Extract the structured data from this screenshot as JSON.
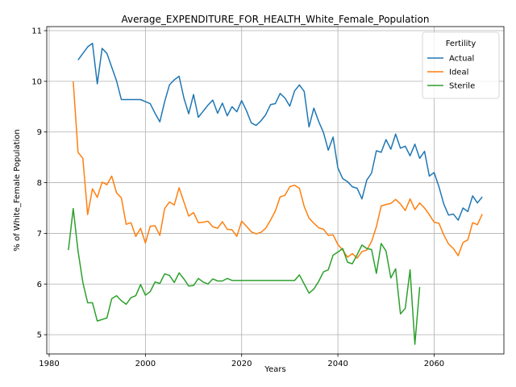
{
  "chart_data": {
    "type": "line",
    "title": "Average_EXPENDITURE_FOR_HEALTH_White_Female_Population",
    "xlabel": "Years",
    "ylabel": "% of White_Female Population",
    "xlim": [
      1979.5,
      2074.5
    ],
    "ylim": [
      4.62,
      11.08
    ],
    "xticks": [
      1980,
      2000,
      2020,
      2040,
      2060
    ],
    "yticks": [
      5,
      6,
      7,
      8,
      9,
      10,
      11
    ],
    "grid": true,
    "legend": {
      "title": "Fertility",
      "position": "top-right"
    },
    "series": [
      {
        "name": "Actual",
        "color": "#1f77b4",
        "x": [
          1986,
          1987,
          1988,
          1989,
          1990,
          1991,
          1992,
          1993,
          1994,
          1995,
          1996,
          1997,
          1998,
          1999,
          2000,
          2001,
          2002,
          2003,
          2004,
          2005,
          2006,
          2007,
          2008,
          2009,
          2010,
          2011,
          2012,
          2013,
          2014,
          2015,
          2016,
          2017,
          2018,
          2019,
          2020,
          2021,
          2022,
          2023,
          2024,
          2025,
          2026,
          2027,
          2028,
          2029,
          2030,
          2031,
          2032,
          2033,
          2034,
          2035,
          2036,
          2037,
          2038,
          2039,
          2040,
          2041,
          2042,
          2043,
          2044,
          2045,
          2046,
          2047,
          2048,
          2049,
          2050,
          2051,
          2052,
          2053,
          2054,
          2055,
          2056,
          2057,
          2058,
          2059,
          2060,
          2061,
          2062,
          2063,
          2064,
          2065,
          2066,
          2067,
          2068,
          2069,
          2070
        ],
        "y": [
          10.42,
          10.55,
          10.68,
          10.75,
          9.95,
          10.65,
          10.55,
          10.28,
          10.01,
          9.64,
          9.64,
          9.64,
          9.64,
          9.64,
          9.6,
          9.56,
          9.37,
          9.2,
          9.6,
          9.93,
          10.03,
          10.1,
          9.67,
          9.36,
          9.74,
          9.29,
          9.41,
          9.53,
          9.63,
          9.37,
          9.57,
          9.32,
          9.5,
          9.4,
          9.62,
          9.42,
          9.18,
          9.13,
          9.22,
          9.34,
          9.54,
          9.56,
          9.76,
          9.67,
          9.51,
          9.81,
          9.93,
          9.8,
          9.1,
          9.47,
          9.21,
          8.99,
          8.64,
          8.9,
          8.29,
          8.08,
          8.02,
          7.92,
          7.89,
          7.68,
          8.05,
          8.19,
          8.63,
          8.6,
          8.85,
          8.66,
          8.96,
          8.68,
          8.72,
          8.53,
          8.76,
          8.48,
          8.62,
          8.13,
          8.2,
          7.92,
          7.58,
          7.36,
          7.38,
          7.26,
          7.5,
          7.43,
          7.74,
          7.6,
          7.72
        ]
      },
      {
        "name": "Ideal",
        "color": "#ff7f0e",
        "x": [
          1985,
          1986,
          1987,
          1988,
          1989,
          1990,
          1991,
          1992,
          1993,
          1994,
          1995,
          1996,
          1997,
          1998,
          1999,
          2000,
          2001,
          2002,
          2003,
          2004,
          2005,
          2006,
          2007,
          2008,
          2009,
          2010,
          2011,
          2012,
          2013,
          2014,
          2015,
          2016,
          2017,
          2018,
          2019,
          2020,
          2021,
          2022,
          2023,
          2024,
          2025,
          2026,
          2027,
          2028,
          2029,
          2030,
          2031,
          2032,
          2033,
          2034,
          2035,
          2036,
          2037,
          2038,
          2039,
          2040,
          2041,
          2042,
          2043,
          2044,
          2045,
          2046,
          2047,
          2048,
          2049,
          2050,
          2051,
          2052,
          2053,
          2054,
          2055,
          2056,
          2057,
          2058,
          2059,
          2060,
          2061,
          2062,
          2063,
          2064,
          2065,
          2066,
          2067,
          2068,
          2069,
          2070
        ],
        "y": [
          10.0,
          8.6,
          8.48,
          7.37,
          7.88,
          7.71,
          8.01,
          7.96,
          8.13,
          7.8,
          7.7,
          7.18,
          7.21,
          6.94,
          7.1,
          6.81,
          7.14,
          7.15,
          6.96,
          7.49,
          7.62,
          7.56,
          7.9,
          7.62,
          7.34,
          7.41,
          7.21,
          7.22,
          7.24,
          7.13,
          7.1,
          7.23,
          7.08,
          7.07,
          6.94,
          7.24,
          7.14,
          7.03,
          6.99,
          7.02,
          7.1,
          7.26,
          7.44,
          7.72,
          7.75,
          7.92,
          7.95,
          7.89,
          7.53,
          7.3,
          7.2,
          7.11,
          7.08,
          6.96,
          6.97,
          6.78,
          6.67,
          6.53,
          6.6,
          6.51,
          6.64,
          6.67,
          6.84,
          7.13,
          7.54,
          7.57,
          7.59,
          7.67,
          7.58,
          7.45,
          7.68,
          7.47,
          7.6,
          7.5,
          7.37,
          7.22,
          7.2,
          6.97,
          6.79,
          6.7,
          6.56,
          6.82,
          6.87,
          7.21,
          7.17,
          7.38
        ]
      },
      {
        "name": "Sterile",
        "color": "#2ca02c",
        "x": [
          1984,
          1985,
          1986,
          1987,
          1988,
          1989,
          1990,
          1991,
          1992,
          1993,
          1994,
          1995,
          1996,
          1997,
          1998,
          1999,
          2000,
          2001,
          2002,
          2003,
          2004,
          2005,
          2006,
          2007,
          2008,
          2009,
          2010,
          2011,
          2012,
          2013,
          2014,
          2015,
          2016,
          2017,
          2018,
          2019,
          2020,
          2021,
          2022,
          2023,
          2024,
          2025,
          2026,
          2027,
          2028,
          2029,
          2030,
          2031,
          2032,
          2033,
          2034,
          2035,
          2036,
          2037,
          2038,
          2039,
          2040,
          2041,
          2042,
          2043,
          2044,
          2045,
          2046,
          2047,
          2048,
          2049,
          2050,
          2051,
          2052,
          2053,
          2054,
          2055,
          2056,
          2057
        ],
        "y": [
          6.67,
          7.49,
          6.65,
          6.03,
          5.63,
          5.63,
          5.27,
          5.3,
          5.33,
          5.71,
          5.77,
          5.67,
          5.6,
          5.73,
          5.77,
          5.99,
          5.78,
          5.85,
          6.04,
          6.01,
          6.2,
          6.17,
          6.03,
          6.22,
          6.1,
          5.96,
          5.97,
          6.11,
          6.04,
          6.0,
          6.1,
          6.06,
          6.06,
          6.11,
          6.07,
          6.07,
          6.07,
          6.07,
          6.07,
          6.07,
          6.07,
          6.07,
          6.07,
          6.07,
          6.07,
          6.07,
          6.07,
          6.07,
          6.18,
          6.0,
          5.82,
          5.9,
          6.05,
          6.24,
          6.28,
          6.57,
          6.63,
          6.7,
          6.43,
          6.4,
          6.58,
          6.77,
          6.7,
          6.68,
          6.21,
          6.8,
          6.65,
          6.12,
          6.3,
          5.41,
          5.52,
          6.28,
          4.81,
          5.94
        ]
      }
    ]
  }
}
